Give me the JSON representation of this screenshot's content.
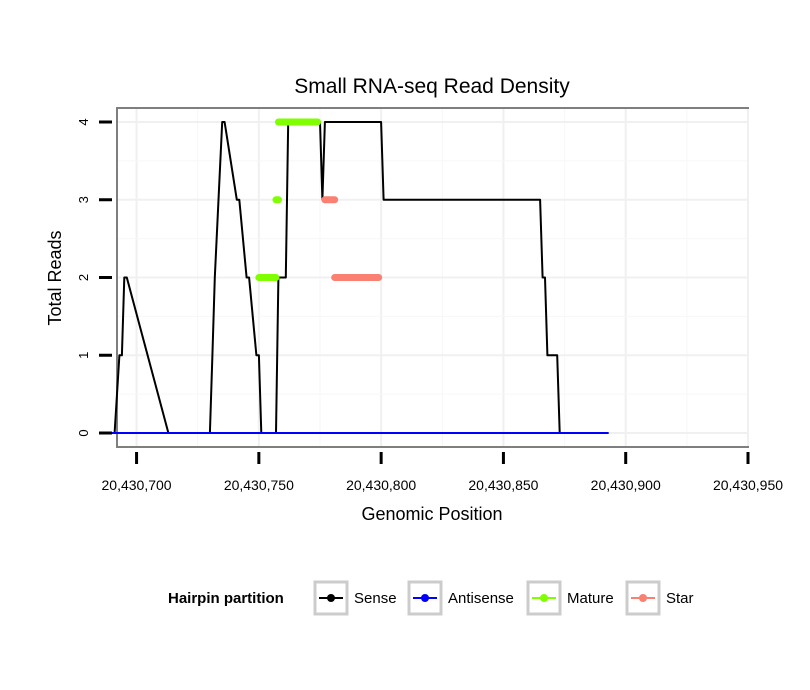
{
  "chart_data": {
    "type": "line",
    "title": "Small RNA-seq Read Density",
    "xlabel": "Genomic Position",
    "ylabel": "Total Reads",
    "xlim": [
      20430692,
      20430950
    ],
    "ylim": [
      -0.18,
      4.18
    ],
    "x_ticks": [
      20430700,
      20430750,
      20430800,
      20430850,
      20430900,
      20430950
    ],
    "x_tick_labels": [
      "20,430,700",
      "20,430,750",
      "20,430,800",
      "20,430,850",
      "20,430,900",
      "20,430,950"
    ],
    "y_ticks": [
      0,
      1,
      2,
      3,
      4
    ],
    "y_tick_labels": [
      "0",
      "1",
      "2",
      "3",
      "4"
    ],
    "grid": true,
    "legend": {
      "title": "Hairpin partition",
      "position": "bottom",
      "entries": [
        "Sense",
        "Antisense",
        "Mature",
        "Star"
      ]
    },
    "series": [
      {
        "name": "Sense",
        "color": "#000000",
        "style": "line",
        "x": [
          20430688,
          20430691,
          20430693,
          20430694,
          20430695,
          20430696,
          20430713,
          20430714,
          20430730,
          20430731,
          20430732,
          20430735,
          20430736,
          20430741,
          20430742,
          20430745,
          20430746,
          20430749,
          20430750,
          20430751,
          20430757,
          20430758,
          20430761,
          20430762,
          20430775,
          20430776,
          20430777,
          20430800,
          20430801,
          20430865,
          20430866,
          20430867,
          20430868,
          20430872,
          20430873,
          20430876,
          20430877,
          20430878,
          20430882,
          20430883,
          20430884,
          20430885,
          20430886,
          20430890,
          20430891,
          20430893
        ],
        "y": [
          0,
          0,
          1,
          1,
          2,
          2,
          0,
          0,
          0,
          1,
          2,
          4,
          4,
          3,
          3,
          2,
          2,
          1,
          1,
          0,
          0,
          2,
          2,
          4,
          4,
          3,
          4,
          4,
          3,
          3,
          2,
          2,
          1,
          1,
          0,
          0,
          0,
          0,
          0,
          0,
          0,
          0,
          0,
          0,
          0,
          0
        ]
      },
      {
        "name": "Antisense",
        "color": "#0000ff",
        "style": "line",
        "x": [
          20430688,
          20430694,
          20430705,
          20430730,
          20430735,
          20430740,
          20430745,
          20430760,
          20430765,
          20430770,
          20430800,
          20430805,
          20430812,
          20430815,
          20430818,
          20430830,
          20430850,
          20430870,
          20430880,
          20430886,
          20430887,
          20430888,
          20430889,
          20430890,
          20430893
        ],
        "y": [
          0,
          0,
          0,
          0,
          0,
          0,
          0,
          0,
          0,
          0,
          0,
          0,
          0,
          0,
          0,
          0,
          0,
          0,
          0,
          0,
          0,
          0,
          0,
          0,
          0
        ]
      },
      {
        "name": "Mature",
        "color": "#7fff00",
        "style": "thick",
        "segments": [
          {
            "x": [
              20430750,
              20430757
            ],
            "y": 2
          },
          {
            "x": [
              20430757,
              20430758
            ],
            "y": 3
          },
          {
            "x": [
              20430758,
              20430774
            ],
            "y": 4
          }
        ]
      },
      {
        "name": "Star",
        "color": "#fa8072",
        "style": "thick",
        "segments": [
          {
            "x": [
              20430777,
              20430781
            ],
            "y": 3
          },
          {
            "x": [
              20430781,
              20430799
            ],
            "y": 2
          }
        ]
      }
    ]
  }
}
